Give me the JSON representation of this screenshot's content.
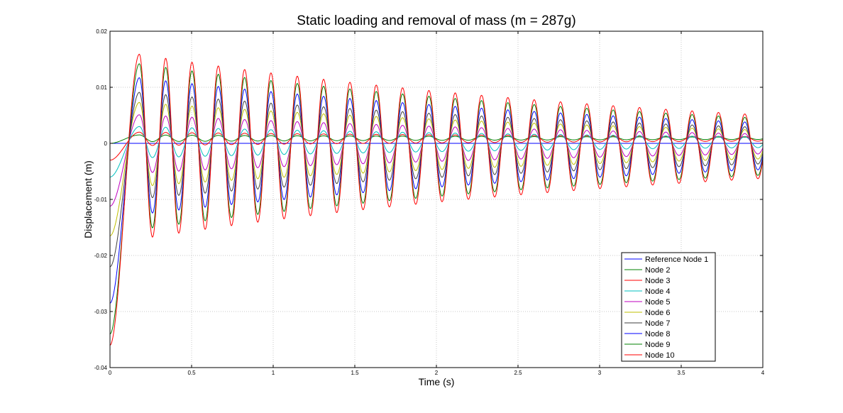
{
  "chart_data": {
    "type": "line",
    "title": "Static loading and removal of mass (m = 287g)",
    "xlabel": "Time (s)",
    "ylabel": "Displacement (m)",
    "xlim": [
      0,
      4
    ],
    "ylim": [
      -0.04,
      0.02
    ],
    "xticks": [
      0,
      0.5,
      1,
      1.5,
      2,
      2.5,
      3,
      3.5,
      4
    ],
    "xtick_labels": [
      "0",
      "0.5",
      "1",
      "1.5",
      "2",
      "2.5",
      "3",
      "3.5",
      "4"
    ],
    "yticks": [
      -0.04,
      -0.03,
      -0.02,
      -0.01,
      0,
      0.01,
      0.02
    ],
    "ytick_labels": [
      "-0.04",
      "-0.03",
      "-0.02",
      "-0.01",
      "0",
      "0.01",
      "0.02"
    ],
    "grid": true,
    "legend_position": "bottom-right",
    "oscillation": {
      "frequency_hz": 6.2,
      "decay_rate": 0.28,
      "release_time_s": 0.18
    },
    "series": [
      {
        "name": "Reference Node 1",
        "color": "#0000ff",
        "initial": 0.0,
        "offset": 0.0,
        "amplitude": 0.0
      },
      {
        "name": "Node 2",
        "color": "#008000",
        "initial": 0.0,
        "offset": 0.0009,
        "amplitude": 0.0006
      },
      {
        "name": "Node 3",
        "color": "#ff0000",
        "initial": -0.003,
        "offset": 0.0008,
        "amplitude": 0.0012
      },
      {
        "name": "Node 4",
        "color": "#00bfbf",
        "initial": -0.006,
        "offset": 0.0002,
        "amplitude": 0.0028
      },
      {
        "name": "Node 5",
        "color": "#bf00bf",
        "initial": -0.0112,
        "offset": -0.0001,
        "amplitude": 0.0052
      },
      {
        "name": "Node 6",
        "color": "#bfbf00",
        "initial": -0.0165,
        "offset": -0.0002,
        "amplitude": 0.0075
      },
      {
        "name": "Node 7",
        "color": "#3f3f3f",
        "initial": -0.022,
        "offset": -0.0004,
        "amplitude": 0.0095
      },
      {
        "name": "Node 8",
        "color": "#0000ff",
        "initial": -0.0285,
        "offset": -0.0005,
        "amplitude": 0.0122
      },
      {
        "name": "Node 9",
        "color": "#008000",
        "initial": -0.034,
        "offset": -0.0006,
        "amplitude": 0.0148
      },
      {
        "name": "Node 10",
        "color": "#ff0000",
        "initial": -0.036,
        "offset": -0.0006,
        "amplitude": 0.0165
      }
    ]
  }
}
